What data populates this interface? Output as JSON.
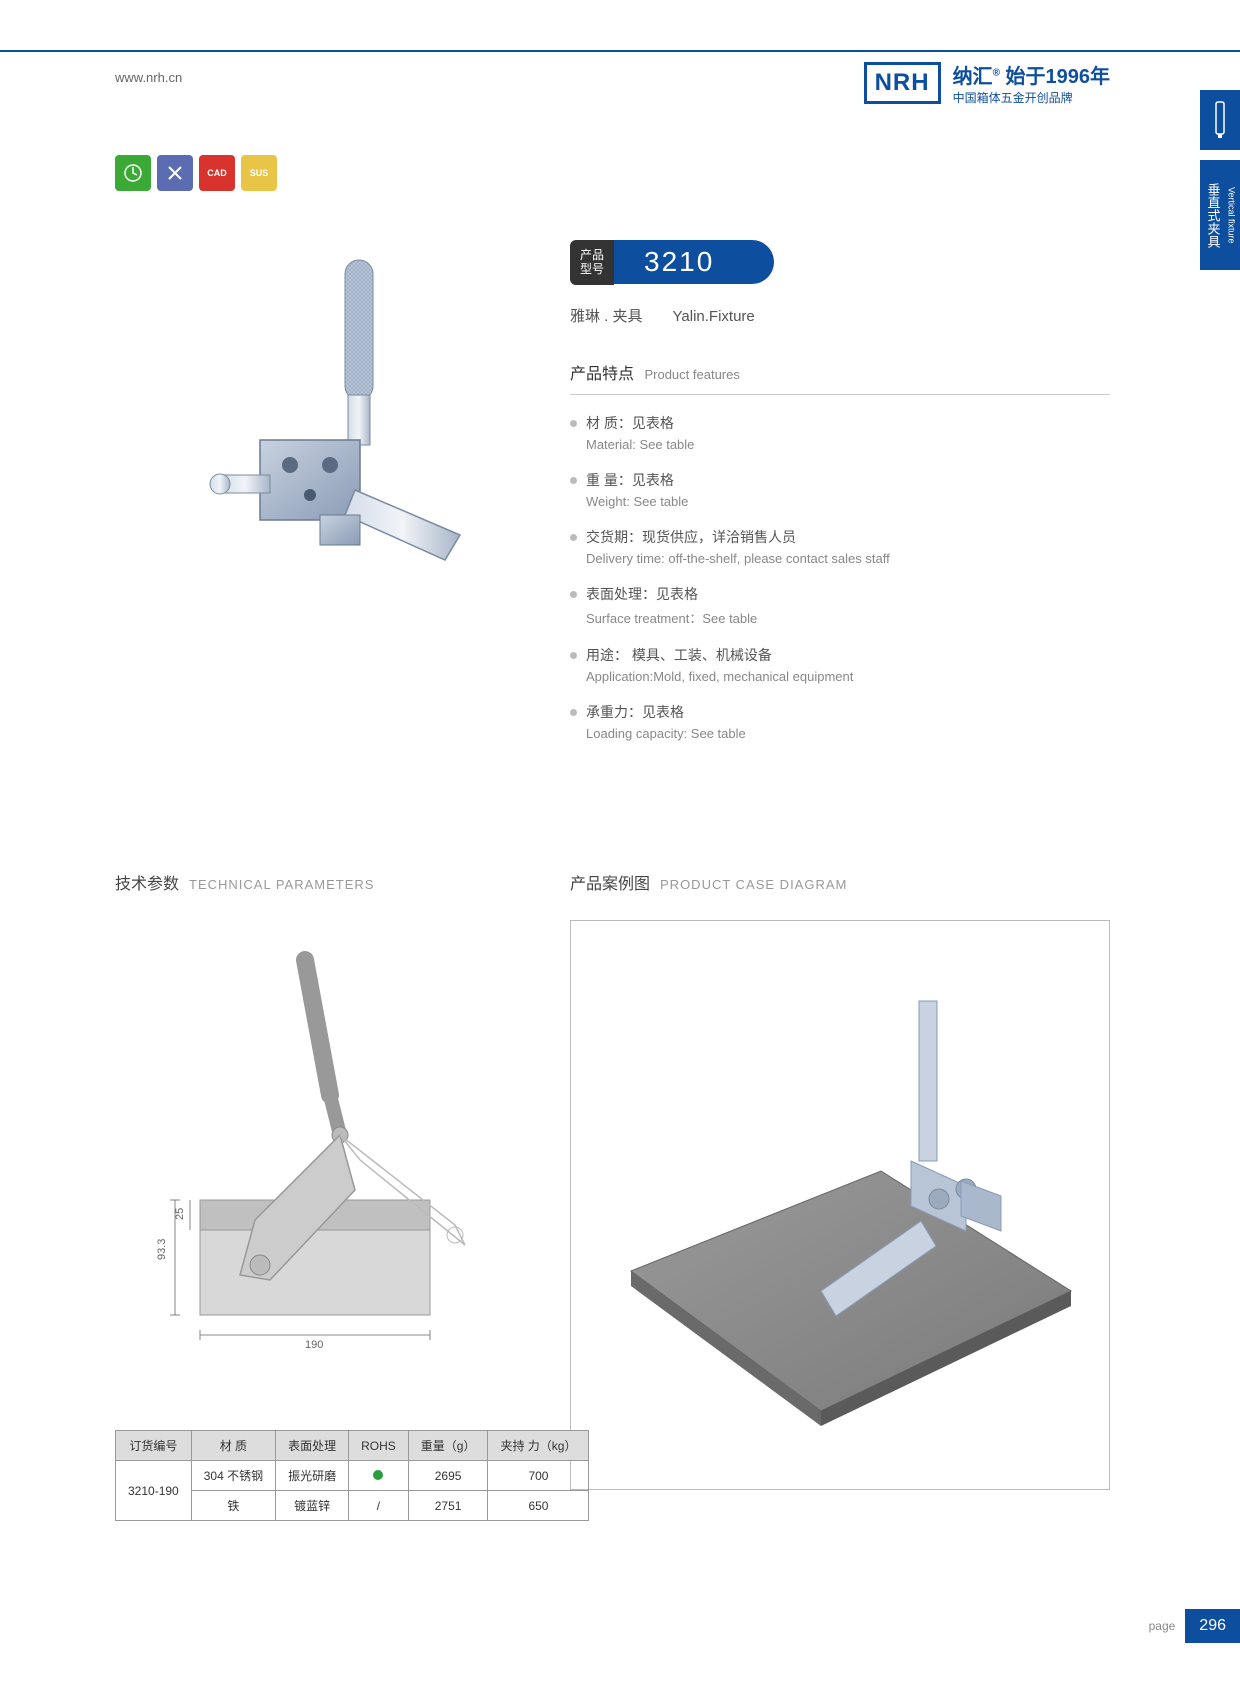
{
  "header": {
    "url": "www.nrh.cn",
    "logo": "NRH",
    "brand_cn": "纳汇",
    "since": "始于1996年",
    "brand_sub": "中国箱体五金开创品牌"
  },
  "side": {
    "en": "Vertical fixture",
    "cn": "垂直式夹具"
  },
  "badges": [
    {
      "label": "",
      "color": "#3ba935"
    },
    {
      "label": "",
      "color": "#5b6cb3"
    },
    {
      "label": "CAD",
      "color": "#d9332e"
    },
    {
      "label": "SUS",
      "color": "#e8c547"
    }
  ],
  "model": {
    "label_cn": "产品\n型号",
    "number": "3210"
  },
  "subtitle": {
    "cn": "雅琳 . 夹具",
    "en": "Yalin.Fixture"
  },
  "features": {
    "title_cn": "产品特点",
    "title_en": "Product features",
    "items": [
      {
        "cn": "材 质：见表格",
        "en": "Material: See table"
      },
      {
        "cn": "重 量：见表格",
        "en": "Weight: See table"
      },
      {
        "cn": "交货期：现货供应，详洽销售人员",
        "en": "Delivery time: off-the-shelf, please contact sales staff"
      },
      {
        "cn": "表面处理：见表格",
        "en": "Surface treatment：See table"
      },
      {
        "cn": "用途： 模具、工装、机械设备",
        "en": "Application:Mold, fixed, mechanical equipment"
      },
      {
        "cn": "承重力：见表格",
        "en": "Loading capacity: See table"
      }
    ]
  },
  "sections": {
    "tech": {
      "cn": "技术参数",
      "en": "TECHNICAL PARAMETERS"
    },
    "case": {
      "cn": "产品案例图",
      "en": "PRODUCT CASE DIAGRAM"
    }
  },
  "dimensions": {
    "h1": "93.3",
    "h2": "25",
    "w": "190"
  },
  "table": {
    "headers": [
      "订货编号",
      "材 质",
      "表面处理",
      "ROHS",
      "重量（g）",
      "夹持 力（kg）"
    ],
    "rows": [
      {
        "code": "3210-190",
        "material": "304 不锈钢",
        "surface": "振光研磨",
        "rohs": "dot",
        "weight": "2695",
        "capacity": "700"
      },
      {
        "code": "",
        "material": "铁",
        "surface": "镀蓝锌",
        "rohs": "/",
        "weight": "2751",
        "capacity": "650"
      }
    ]
  },
  "footer": {
    "page_label": "page",
    "page_num": "296"
  },
  "colors": {
    "primary": "#0d4f9e",
    "steel": "#b8c5d6",
    "steel_dark": "#8a9bb5"
  }
}
